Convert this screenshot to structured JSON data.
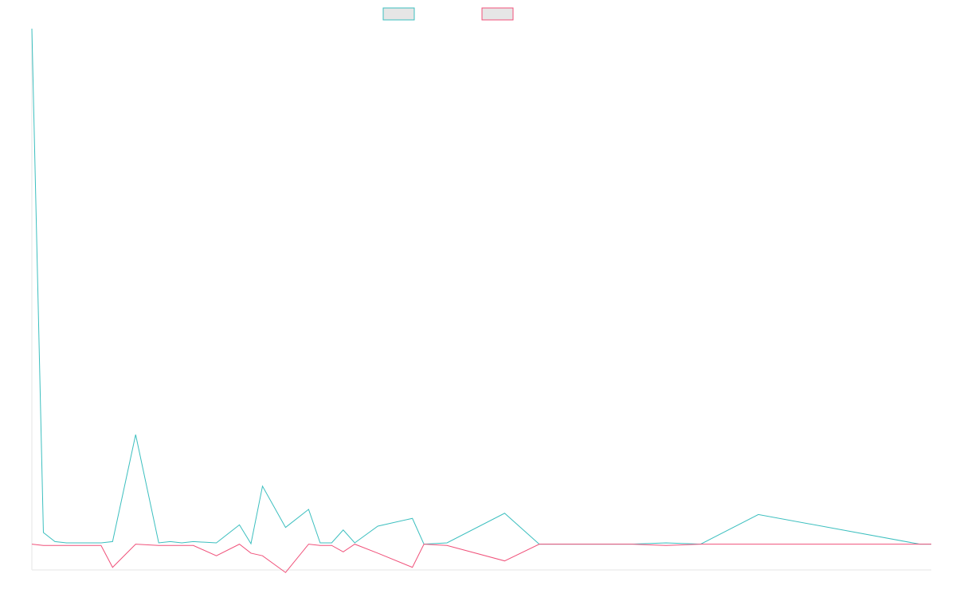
{
  "chart_data": {
    "type": "line",
    "title": "",
    "xlabel": "",
    "ylabel": "",
    "ylim": [
      -1,
      20
    ],
    "grid": false,
    "legend": {
      "placement": "top-center",
      "show_text": false
    },
    "colors": {
      "series_a": "#3cbfbf",
      "series_b": "#f0517a",
      "legend_fill": "#e6e6e6",
      "axis": "#e5e5e5"
    },
    "series": [
      {
        "x": [
          0,
          1,
          2,
          3,
          5,
          6,
          7,
          9,
          11,
          12,
          13,
          14,
          16,
          18,
          19,
          20,
          22,
          24,
          25,
          26,
          27,
          28,
          30,
          33,
          34,
          36,
          41,
          44,
          46,
          52,
          55,
          58,
          63,
          77,
          78
        ],
        "values": [
          20,
          0.45,
          0.1,
          0.05,
          0.05,
          0.05,
          0.1,
          4.25,
          0.05,
          0.1,
          0.05,
          0.1,
          0.05,
          0.75,
          0.02,
          2.25,
          0.65,
          1.35,
          0.05,
          0.05,
          0.55,
          0.05,
          0.7,
          1.0,
          0,
          0.05,
          1.2,
          0,
          0,
          0,
          0.05,
          0,
          1.15,
          0,
          0
        ]
      },
      {
        "x": [
          0,
          1,
          2,
          3,
          5,
          6,
          7,
          9,
          11,
          12,
          13,
          14,
          16,
          18,
          19,
          20,
          22,
          24,
          25,
          26,
          27,
          28,
          30,
          33,
          34,
          36,
          41,
          44,
          46,
          52,
          55,
          58,
          63,
          77,
          78
        ],
        "values": [
          0,
          -0.05,
          -0.05,
          -0.05,
          -0.05,
          -0.05,
          -0.9,
          0,
          -0.05,
          -0.05,
          -0.05,
          -0.05,
          -0.45,
          0,
          -0.35,
          -0.45,
          -1.1,
          0,
          -0.05,
          -0.05,
          -0.3,
          0,
          -0.35,
          -0.9,
          0,
          -0.05,
          -0.65,
          0,
          0,
          0,
          -0.05,
          0,
          0,
          0,
          0
        ]
      }
    ]
  }
}
